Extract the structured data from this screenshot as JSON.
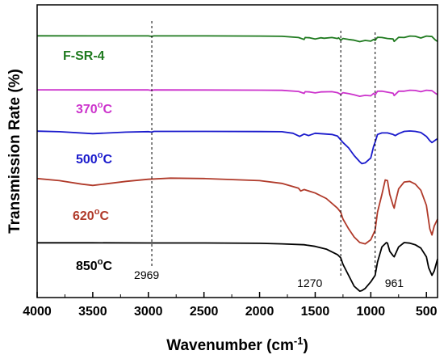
{
  "chart_data": {
    "type": "line",
    "title": "",
    "xlabel": "Wavenumber (cm",
    "xlabel_sup": "-1",
    "xlabel_end": ")",
    "ylabel": "Transmission Rate (%)",
    "xlim": [
      4000,
      400
    ],
    "x_ticks": [
      4000,
      3500,
      3000,
      2500,
      2000,
      1500,
      1000,
      500
    ],
    "x_tick_labels": [
      "4000",
      "3500",
      "3000",
      "2500",
      "2000",
      "1500",
      "1000",
      "500"
    ],
    "y_ticks_shown": false,
    "grid": false,
    "legend": "inline labels",
    "markers": [
      {
        "x": 2969,
        "label": "2969"
      },
      {
        "x": 1270,
        "label": "1270"
      },
      {
        "x": 961,
        "label": "961"
      }
    ],
    "series": [
      {
        "name": "F-SR-4",
        "color": "#1f7a1f",
        "label_text": "F-SR-4",
        "label_sup": "",
        "x": [
          4000,
          3500,
          3000,
          2970,
          2950,
          2500,
          2000,
          1800,
          1650,
          1600,
          1590,
          1550,
          1500,
          1450,
          1420,
          1350,
          1300,
          1290,
          1270,
          1250,
          1200,
          1150,
          1100,
          1050,
          1000,
          975,
          961,
          940,
          900,
          850,
          800,
          790,
          750,
          700,
          650,
          600,
          550,
          500,
          450,
          420,
          400
        ],
        "y": [
          99.5,
          99.4,
          99.4,
          98.3,
          99.4,
          99.3,
          99.0,
          98.5,
          96.0,
          92.0,
          96.0,
          95.5,
          93.0,
          95.5,
          94.5,
          96.0,
          94.0,
          95.5,
          90.5,
          94.0,
          92.0,
          90.5,
          87.5,
          90.0,
          88.5,
          92.0,
          90.0,
          96.5,
          96.0,
          94.0,
          93.0,
          88.0,
          96.5,
          96.0,
          99.0,
          98.5,
          95.0,
          99.0,
          98.0,
          91.0,
          88.0
        ]
      },
      {
        "name": "370oC",
        "color": "#cc33cc",
        "label_text": "370",
        "label_sup": "o",
        "label_end": "C",
        "x": [
          4000,
          3500,
          3000,
          2970,
          2950,
          2500,
          2000,
          1800,
          1650,
          1600,
          1590,
          1550,
          1500,
          1450,
          1350,
          1300,
          1270,
          1250,
          1200,
          1150,
          1100,
          1050,
          1000,
          975,
          961,
          940,
          900,
          850,
          800,
          790,
          750,
          700,
          650,
          600,
          550,
          500,
          450,
          420,
          400
        ],
        "y": [
          99.8,
          99.7,
          99.6,
          98.5,
          99.6,
          99.5,
          99.2,
          98.8,
          96.5,
          92.5,
          96.0,
          95.5,
          93.5,
          95.5,
          96.0,
          94.0,
          90.5,
          94.0,
          92.0,
          89.5,
          86.5,
          88.5,
          87.5,
          92.5,
          89.5,
          97.0,
          97.0,
          95.0,
          93.0,
          88.0,
          97.0,
          97.0,
          99.0,
          98.5,
          96.0,
          99.0,
          98.0,
          93.0,
          90.0
        ]
      },
      {
        "name": "500oC",
        "color": "#1a1acc",
        "label_text": "500",
        "label_sup": "o",
        "label_end": "C",
        "x": [
          4000,
          3800,
          3500,
          3200,
          3000,
          2970,
          2950,
          2500,
          2000,
          1800,
          1700,
          1640,
          1600,
          1560,
          1500,
          1450,
          1400,
          1350,
          1300,
          1280,
          1250,
          1200,
          1150,
          1100,
          1080,
          1050,
          1000,
          975,
          961,
          940,
          900,
          850,
          800,
          780,
          750,
          700,
          650,
          600,
          550,
          500,
          470,
          450,
          420,
          400
        ],
        "y": [
          99.8,
          99.0,
          96.5,
          98.5,
          99.2,
          98.5,
          99.5,
          99.5,
          99.3,
          99.0,
          97.0,
          93.0,
          96.0,
          94.0,
          97.0,
          96.5,
          96.0,
          95.5,
          93.5,
          90.0,
          85.0,
          78.0,
          68.0,
          60.0,
          57.5,
          58.5,
          65.0,
          80.0,
          85.5,
          95.5,
          97.5,
          97.5,
          95.5,
          94.0,
          96.5,
          99.5,
          100.0,
          99.5,
          98.0,
          93.0,
          87.5,
          85.0,
          88.0,
          90.0
        ]
      },
      {
        "name": "620oC",
        "color": "#b03a2a",
        "label_text": "620",
        "label_sup": "o",
        "label_end": "C",
        "x": [
          4000,
          3800,
          3600,
          3500,
          3400,
          3200,
          3000,
          2800,
          2500,
          2000,
          1800,
          1650,
          1630,
          1600,
          1500,
          1400,
          1300,
          1270,
          1250,
          1200,
          1150,
          1100,
          1050,
          1000,
          961,
          940,
          900,
          870,
          850,
          830,
          800,
          790,
          780,
          750,
          700,
          650,
          600,
          550,
          500,
          470,
          450,
          430,
          400
        ],
        "y": [
          99.5,
          98.0,
          95.5,
          94.5,
          95.5,
          97.5,
          99.0,
          99.8,
          99.5,
          98.0,
          96.0,
          92.5,
          90.5,
          91.5,
          89.0,
          85.0,
          78.0,
          75.0,
          70.0,
          63.0,
          57.0,
          53.0,
          52.0,
          55.0,
          62.0,
          75.0,
          88.0,
          98.5,
          98.0,
          88.0,
          80.0,
          78.0,
          82.0,
          92.0,
          97.0,
          97.5,
          95.5,
          91.0,
          80.0,
          63.0,
          58.5,
          65.0,
          70.0
        ]
      },
      {
        "name": "850oC",
        "color": "#000000",
        "label_text": "850",
        "label_sup": "o",
        "label_end": "C",
        "x": [
          4000,
          3800,
          3500,
          3000,
          2500,
          2000,
          1800,
          1600,
          1500,
          1400,
          1300,
          1270,
          1250,
          1200,
          1150,
          1100,
          1080,
          1050,
          1000,
          961,
          940,
          900,
          860,
          850,
          830,
          800,
          790,
          750,
          700,
          650,
          600,
          550,
          500,
          480,
          450,
          430,
          400
        ],
        "y": [
          99.8,
          99.8,
          99.8,
          99.6,
          99.6,
          99.3,
          98.8,
          98.0,
          96.5,
          94.0,
          89.0,
          86.0,
          80.0,
          70.0,
          60.0,
          55.5,
          56.0,
          58.0,
          64.0,
          70.0,
          82.0,
          96.0,
          100.0,
          99.5,
          92.0,
          88.0,
          87.0,
          96.0,
          100.0,
          99.5,
          98.0,
          95.0,
          87.0,
          77.0,
          70.0,
          74.0,
          85.0
        ]
      }
    ]
  }
}
